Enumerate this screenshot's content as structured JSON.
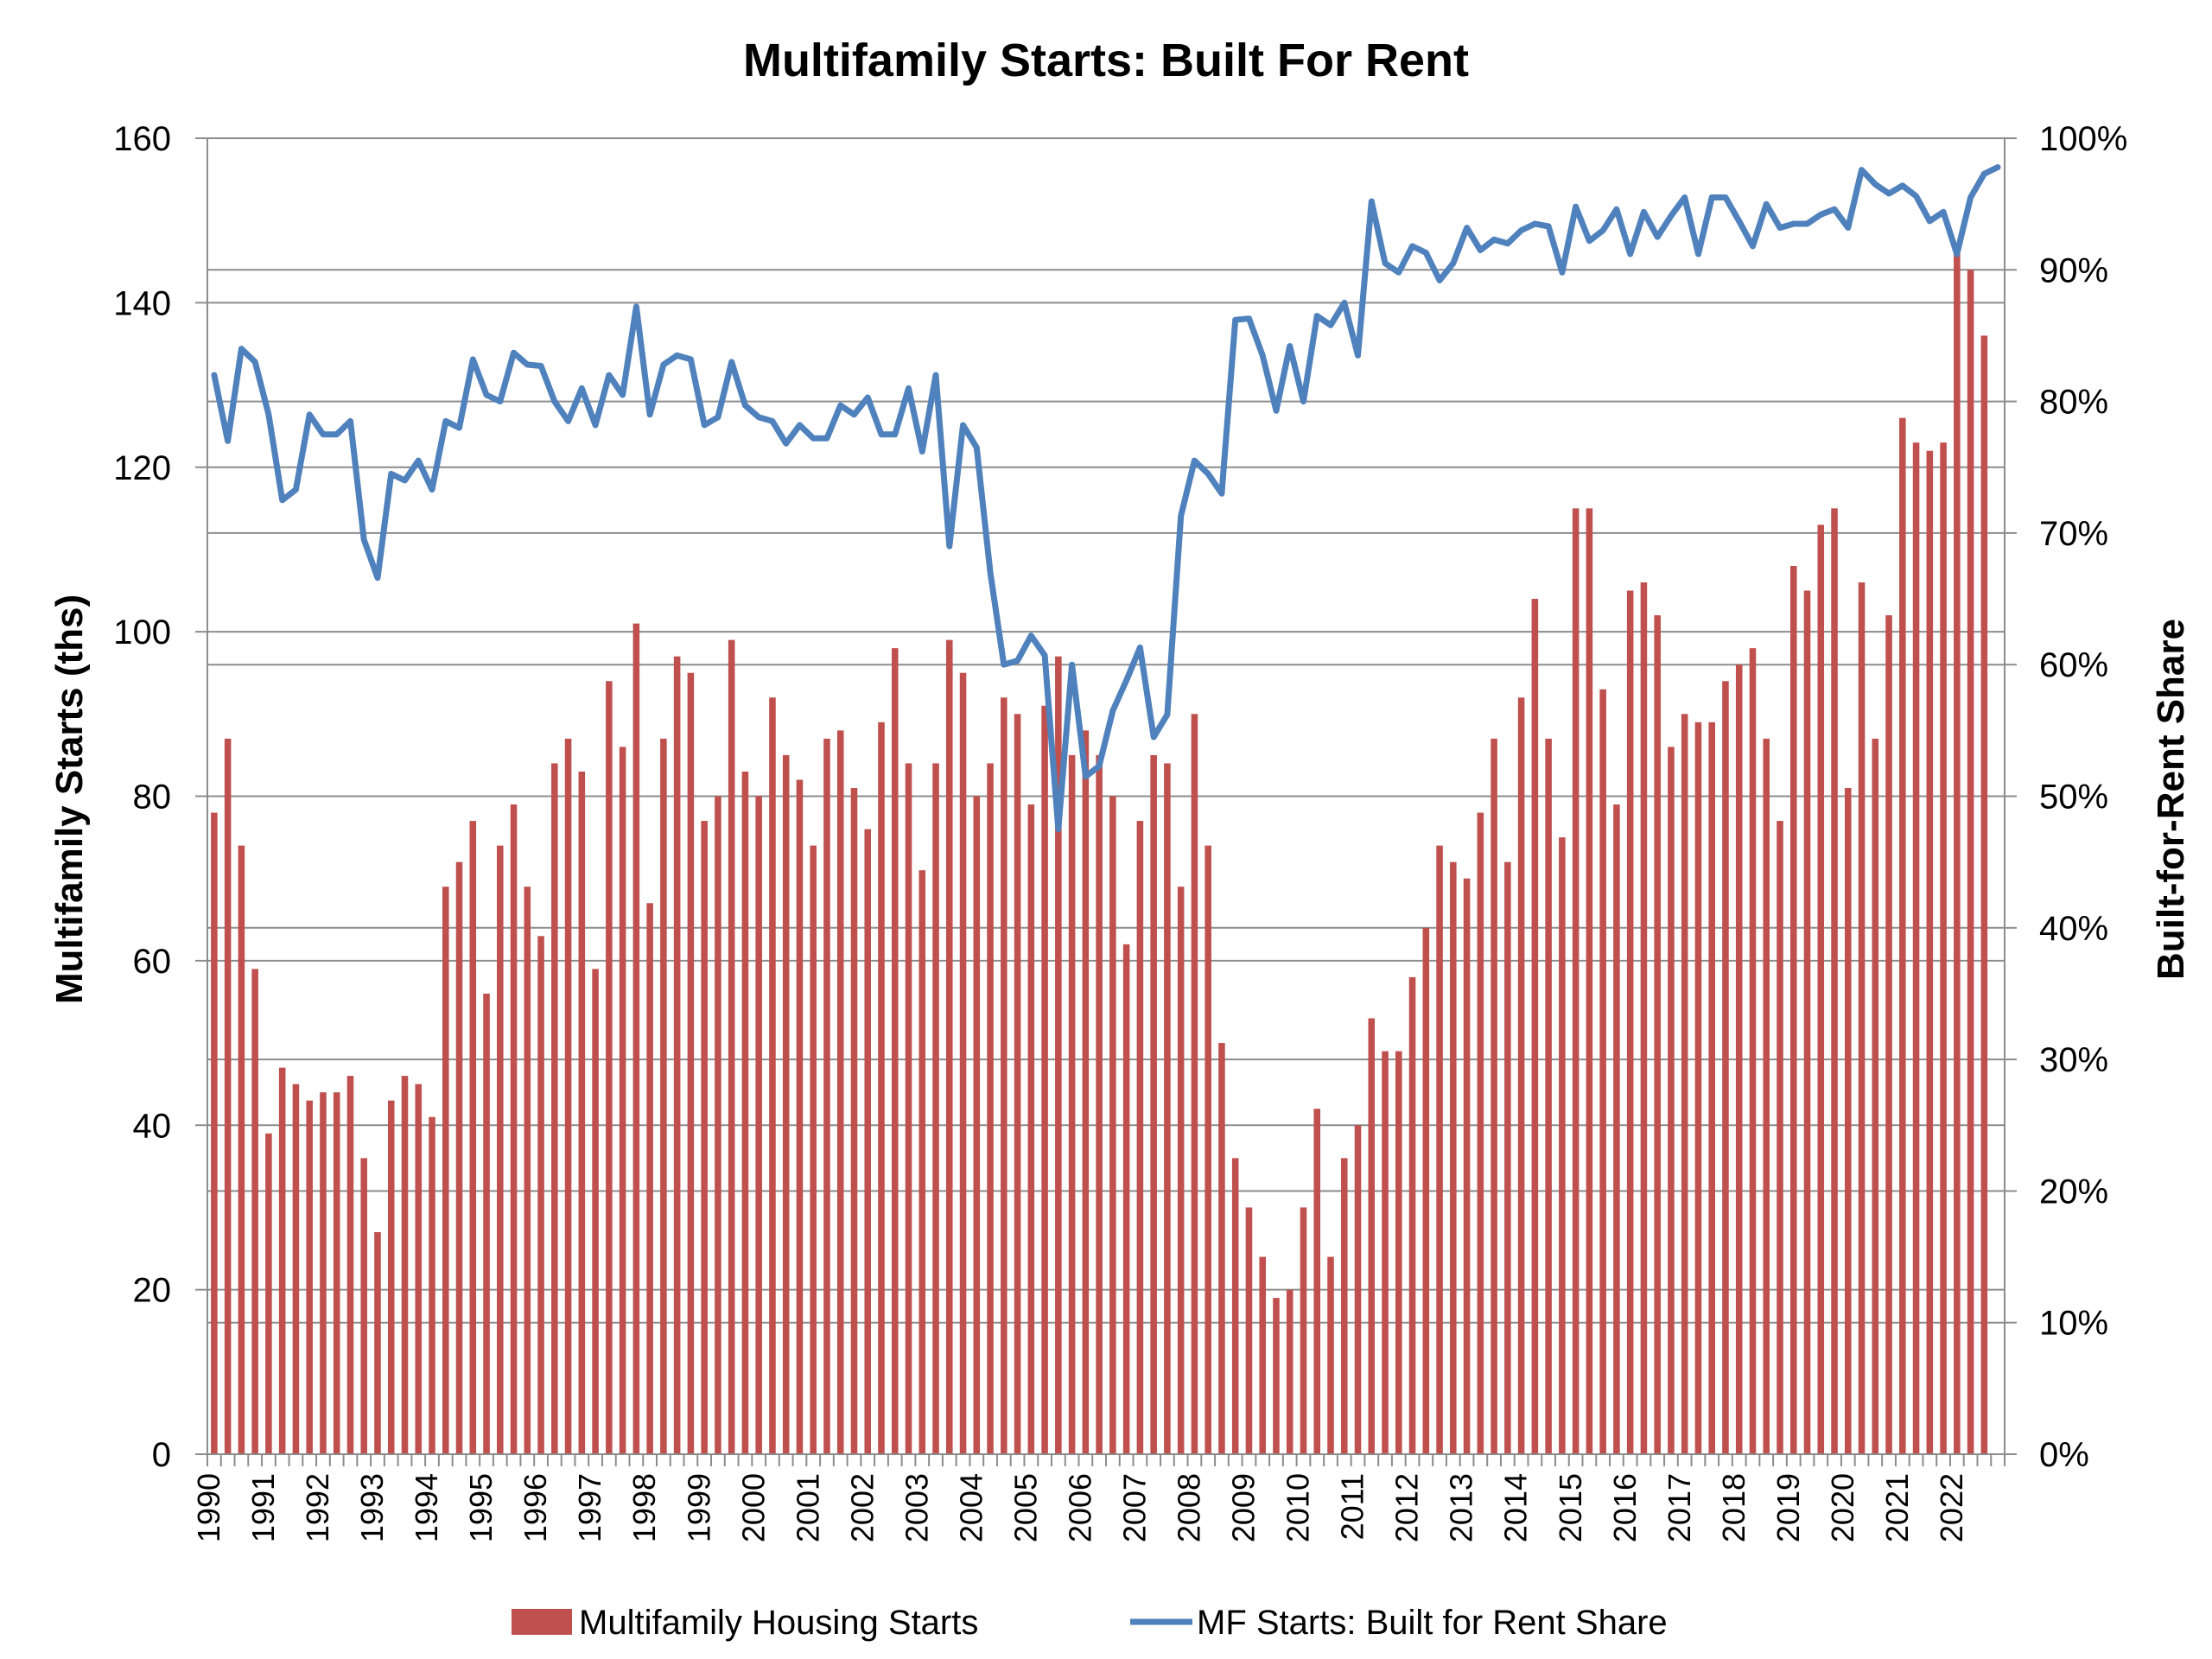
{
  "colors": {
    "bars": "#c0504d",
    "line": "#4f81bd",
    "grid": "#8c8c8c",
    "axis": "#8c8c8c"
  },
  "chart_data": {
    "type": "bar",
    "title": "Multifamily Starts: Built For Rent",
    "ylabel": "Multifamily Starts (ths)",
    "y2label": "Built-for-Rent Share",
    "ylim": [
      0,
      160
    ],
    "y2lim": [
      0,
      1
    ],
    "yticks": [
      "0",
      "20",
      "40",
      "60",
      "80",
      "100",
      "120",
      "140",
      "160"
    ],
    "y2ticks": [
      "0%",
      "10%",
      "20%",
      "30%",
      "40%",
      "50%",
      "60%",
      "70%",
      "80%",
      "90%",
      "100%"
    ],
    "xticks": [
      "1990",
      "1991",
      "1992",
      "1993",
      "1994",
      "1995",
      "1996",
      "1997",
      "1998",
      "1999",
      "2000",
      "2001",
      "2002",
      "2003",
      "2004",
      "2005",
      "2006",
      "2007",
      "2008",
      "2009",
      "2010",
      "2011",
      "2012",
      "2013",
      "2014",
      "2015",
      "2016",
      "2017",
      "2018",
      "2019",
      "2020",
      "2021",
      "2022"
    ],
    "grid": true,
    "legend_position": "bottom",
    "series": [
      {
        "name": "Multifamily Housing Starts",
        "type": "bar",
        "axis": "left",
        "values": [
          78,
          87,
          74,
          59,
          39,
          47,
          45,
          43,
          44,
          44,
          46,
          36,
          27,
          43,
          46,
          45,
          41,
          69,
          72,
          77,
          56,
          74,
          79,
          69,
          63,
          84,
          87,
          83,
          59,
          94,
          86,
          101,
          67,
          87,
          97,
          95,
          77,
          80,
          99,
          83,
          80,
          92,
          85,
          82,
          74,
          87,
          88,
          81,
          76,
          89,
          98,
          84,
          71,
          84,
          99,
          95,
          80,
          84,
          92,
          90,
          79,
          91,
          97,
          85,
          88,
          85,
          80,
          62,
          77,
          85,
          84,
          69,
          90,
          74,
          50,
          36,
          30,
          24,
          19,
          20,
          30,
          42,
          24,
          36,
          40,
          53,
          49,
          49,
          58,
          64,
          74,
          72,
          70,
          78,
          87,
          72,
          92,
          104,
          87,
          75,
          115,
          115,
          93,
          79,
          105,
          106,
          102,
          86,
          90,
          89,
          89,
          94,
          96,
          98,
          87,
          77,
          108,
          105,
          113,
          115,
          81,
          106,
          87,
          102,
          126,
          123,
          122,
          123,
          147,
          144,
          136
        ]
      },
      {
        "name": "MF Starts: Built for Rent Share",
        "type": "line",
        "axis": "right",
        "values": [
          0.82,
          0.77,
          0.84,
          0.83,
          0.79,
          0.725,
          0.733,
          0.79,
          0.775,
          0.775,
          0.785,
          0.695,
          0.666,
          0.745,
          0.74,
          0.755,
          0.733,
          0.785,
          0.78,
          0.832,
          0.805,
          0.8,
          0.837,
          0.828,
          0.827,
          0.8,
          0.785,
          0.81,
          0.782,
          0.82,
          0.805,
          0.872,
          0.79,
          0.828,
          0.835,
          0.832,
          0.782,
          0.788,
          0.83,
          0.797,
          0.788,
          0.785,
          0.768,
          0.782,
          0.772,
          0.772,
          0.797,
          0.79,
          0.803,
          0.775,
          0.775,
          0.81,
          0.762,
          0.82,
          0.69,
          0.782,
          0.765,
          0.67,
          0.6,
          0.603,
          0.622,
          0.607,
          0.475,
          0.6,
          0.515,
          0.523,
          0.565,
          0.588,
          0.613,
          0.545,
          0.562,
          0.713,
          0.755,
          0.745,
          0.73,
          0.862,
          0.863,
          0.835,
          0.793,
          0.842,
          0.8,
          0.865,
          0.858,
          0.875,
          0.835,
          0.952,
          0.905,
          0.898,
          0.918,
          0.913,
          0.892,
          0.905,
          0.932,
          0.915,
          0.923,
          0.92,
          0.93,
          0.935,
          0.933,
          0.898,
          0.948,
          0.922,
          0.93,
          0.946,
          0.912,
          0.944,
          0.925,
          0.941,
          0.955,
          0.912,
          0.955,
          0.955,
          0.937,
          0.918,
          0.95,
          0.932,
          0.935,
          0.935,
          0.942,
          0.946,
          0.932,
          0.976,
          0.965,
          0.958,
          0.964,
          0.956,
          0.937,
          0.944,
          0.912,
          0.955,
          0.973,
          0.978
        ]
      }
    ]
  }
}
